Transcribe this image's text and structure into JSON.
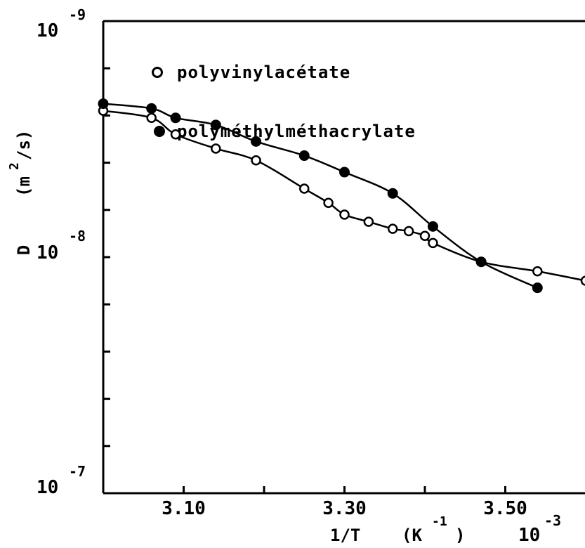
{
  "chart_data": {
    "type": "scatter",
    "title": "",
    "xlabel": "1/T",
    "xlabel_unit_base": "(K",
    "xlabel_unit_exp": "-1",
    "xlabel_unit_close": ")",
    "x_multiplier_base": "10",
    "x_multiplier_exp": "-3",
    "ylabel_symbol": "D",
    "ylabel_unit_base": "(m",
    "ylabel_unit_exp": "2",
    "ylabel_unit_rest": "/s)",
    "x_ticks": [
      {
        "value": 3.1,
        "label": "3.10"
      },
      {
        "value": 3.3,
        "label": "3.30"
      },
      {
        "value": 3.5,
        "label": "3.50"
      }
    ],
    "x_range": [
      3.0,
      3.6
    ],
    "y_range": [
      -9,
      -7
    ],
    "y_scale": "log-inverted",
    "y_ticks": [
      {
        "base": "10",
        "exp": "-9",
        "value": -9
      },
      {
        "base": "10",
        "exp": "-8",
        "value": -8
      },
      {
        "base": "10",
        "exp": "-7",
        "value": -7
      }
    ],
    "legend_position": "top-left",
    "series": [
      {
        "name": "polyvinylacétate",
        "marker": "open-circle",
        "x": [
          3.0,
          3.06,
          3.09,
          3.14,
          3.19,
          3.25,
          3.28,
          3.3,
          3.33,
          3.36,
          3.38,
          3.4,
          3.41,
          3.47,
          3.54,
          3.6
        ],
        "y": [
          -8.62,
          -8.59,
          -8.52,
          -8.46,
          -8.41,
          -8.29,
          -8.23,
          -8.18,
          -8.15,
          -8.12,
          -8.11,
          -8.09,
          -8.06,
          -7.98,
          -7.94,
          -7.9
        ]
      },
      {
        "name": "polyméthylméthacrylate",
        "marker": "filled-circle",
        "x": [
          3.0,
          3.06,
          3.09,
          3.14,
          3.19,
          3.25,
          3.3,
          3.36,
          3.41,
          3.47,
          3.54
        ],
        "y": [
          -8.65,
          -8.63,
          -8.59,
          -8.56,
          -8.49,
          -8.43,
          -8.36,
          -8.27,
          -8.13,
          -7.98,
          -7.87
        ]
      }
    ]
  }
}
